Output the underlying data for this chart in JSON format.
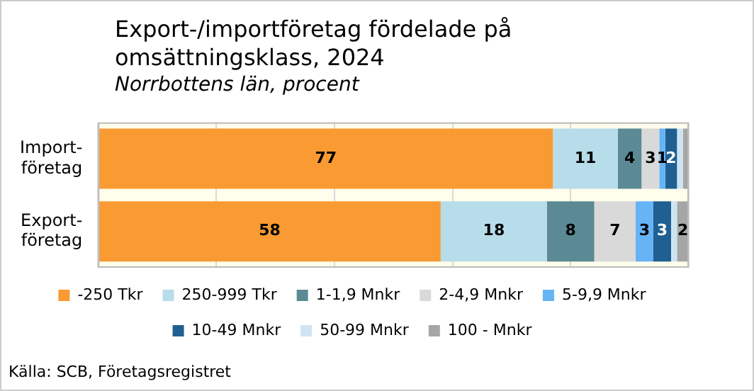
{
  "chart_data": {
    "type": "bar",
    "orientation": "horizontal",
    "stacked": true,
    "title": "Export-/importföretag fördelade på omsättningsklass, 2024",
    "subtitle": "Norrbottens län, procent",
    "categories": [
      "Import-företag",
      "Export-företag"
    ],
    "series": [
      {
        "name": "-250 Tkr",
        "color": "#f99a32",
        "values": [
          77,
          58
        ],
        "value_labels": [
          "77",
          "58"
        ]
      },
      {
        "name": "250-999 Tkr",
        "color": "#b7dcea",
        "values": [
          11,
          18
        ],
        "value_labels": [
          "11",
          "18"
        ]
      },
      {
        "name": "1-1,9 Mnkr",
        "color": "#5b8a94",
        "values": [
          4,
          8
        ],
        "value_labels": [
          "4",
          "8"
        ]
      },
      {
        "name": "2-4,9 Mnkr",
        "color": "#d9d9d9",
        "values": [
          3,
          7
        ],
        "value_labels": [
          "3",
          "7"
        ]
      },
      {
        "name": "5-9,9 Mnkr",
        "color": "#66b3f5",
        "values": [
          1,
          3
        ],
        "value_labels": [
          "1",
          "3"
        ]
      },
      {
        "name": "10-49 Mnkr",
        "color": "#1f5f91",
        "values": [
          2,
          3
        ],
        "value_labels": [
          "2",
          "3"
        ]
      },
      {
        "name": "50-99 Mnkr",
        "color": "#cfe4f3",
        "values": [
          1,
          1
        ],
        "value_labels": [
          null,
          null
        ]
      },
      {
        "name": "100 - Mnkr",
        "color": "#a6a6a6",
        "values": [
          1,
          2
        ],
        "value_labels": [
          null,
          "2"
        ]
      }
    ],
    "xlim": [
      0,
      100
    ],
    "xticks": [
      {
        "value": 0,
        "label": null
      },
      {
        "value": 20,
        "label": null
      },
      {
        "value": 40,
        "label": null
      },
      {
        "value": 60,
        "label": null
      },
      {
        "value": 80,
        "label": null
      },
      {
        "value": 100,
        "label": null
      }
    ],
    "grid": "x",
    "tick_labels": "y",
    "legend": "bottom",
    "annotations": [
      "Källa: SCB, Företagsregistret"
    ]
  }
}
